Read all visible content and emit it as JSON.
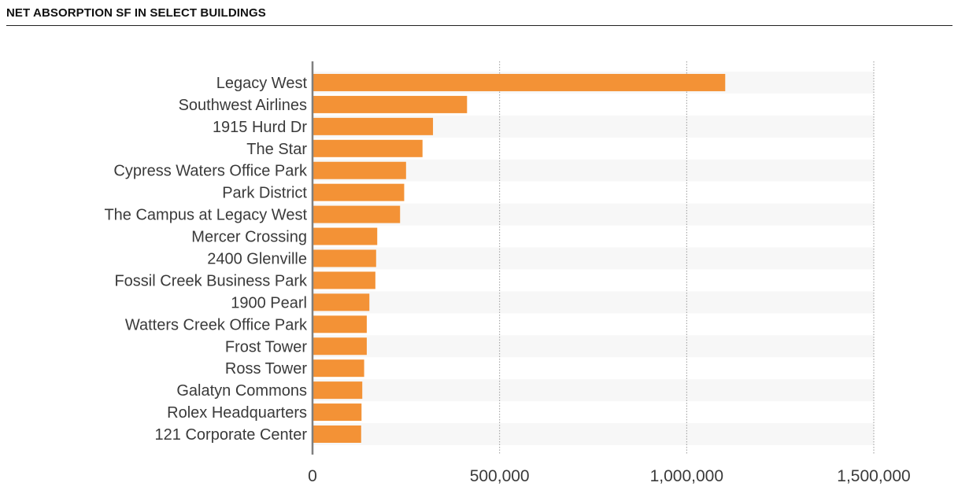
{
  "chart_data": {
    "type": "bar",
    "orientation": "horizontal",
    "title": "NET ABSORPTION SF IN SELECT BUILDINGS",
    "categories": [
      "Legacy West",
      "Southwest Airlines",
      "1915 Hurd Dr",
      "The Star",
      "Cypress Waters Office Park",
      "Park District",
      "The Campus at Legacy West",
      "Mercer Crossing",
      "2400 Glenville",
      "Fossil Creek Business Park",
      "1900 Pearl",
      "Watters Creek Office Park",
      "Frost Tower",
      "Ross Tower",
      "Galatyn Commons",
      "Rolex Headquarters",
      "121 Corporate Center"
    ],
    "values": [
      1103000,
      413000,
      322000,
      294000,
      250000,
      245000,
      234000,
      173000,
      170000,
      168000,
      152000,
      145000,
      145000,
      138000,
      133000,
      131000,
      130000
    ],
    "xlim": [
      0,
      1500000
    ],
    "xticks": [
      0,
      500000,
      1000000,
      1500000
    ],
    "xtick_labels": [
      "0",
      "500,000",
      "1,000,000",
      "1,500,000"
    ],
    "grid": "vertical-dotted",
    "bar_color": "#F39236",
    "band_color": "#F7F7F7"
  }
}
